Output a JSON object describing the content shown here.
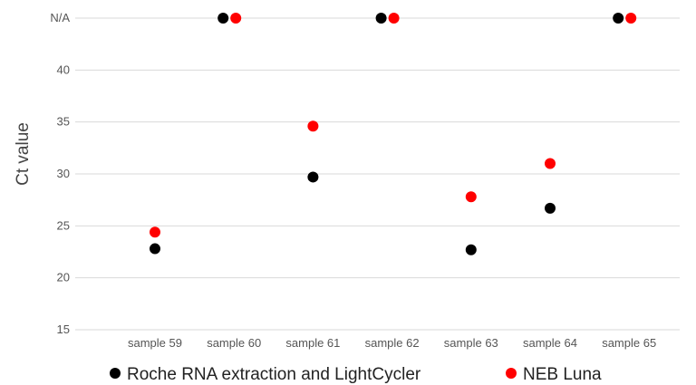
{
  "chart_data": {
    "type": "scatter",
    "ylabel": "Ct value",
    "xlabel": "",
    "categories": [
      "sample 59",
      "sample 60",
      "sample 61",
      "sample 62",
      "sample 63",
      "sample 64",
      "sample 65"
    ],
    "y_ticks": [
      {
        "value": 15,
        "label": "15"
      },
      {
        "value": 20,
        "label": "20"
      },
      {
        "value": 25,
        "label": "25"
      },
      {
        "value": 30,
        "label": "30"
      },
      {
        "value": 35,
        "label": "35"
      },
      {
        "value": 40,
        "label": "40"
      },
      {
        "value": 45,
        "label": "N/A"
      }
    ],
    "ylim": [
      15,
      45
    ],
    "grid": true,
    "legend_position": "bottom",
    "series": [
      {
        "name": "Roche RNA extraction and LightCycler",
        "color": "#000000",
        "values": [
          22.8,
          45,
          29.7,
          45,
          22.7,
          26.7,
          45
        ]
      },
      {
        "name": "NEB Luna",
        "color": "#ff0000",
        "values": [
          24.4,
          45,
          34.6,
          45,
          27.8,
          31.0,
          45
        ]
      }
    ]
  }
}
